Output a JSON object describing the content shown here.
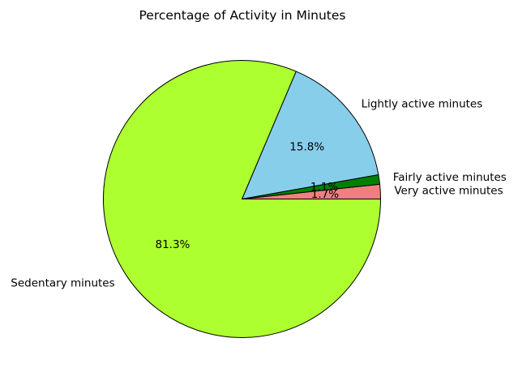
{
  "chart_data": {
    "type": "pie",
    "title": "Percentage of Activity in Minutes",
    "slices": [
      {
        "label": "Very active minutes",
        "value": 1.7,
        "pct_label": "1.7%",
        "color": "#f08080"
      },
      {
        "label": "Fairly active minutes",
        "value": 1.1,
        "pct_label": "1.1%",
        "color": "#008000"
      },
      {
        "label": "Lightly active minutes",
        "value": 15.8,
        "pct_label": "15.8%",
        "color": "#87ceeb"
      },
      {
        "label": "Sedentary minutes",
        "value": 81.3,
        "pct_label": "81.3%",
        "color": "#adff2f"
      }
    ],
    "start_angle_deg": 0,
    "direction": "counterclockwise",
    "edge_color": "#000000",
    "legend": "none"
  }
}
